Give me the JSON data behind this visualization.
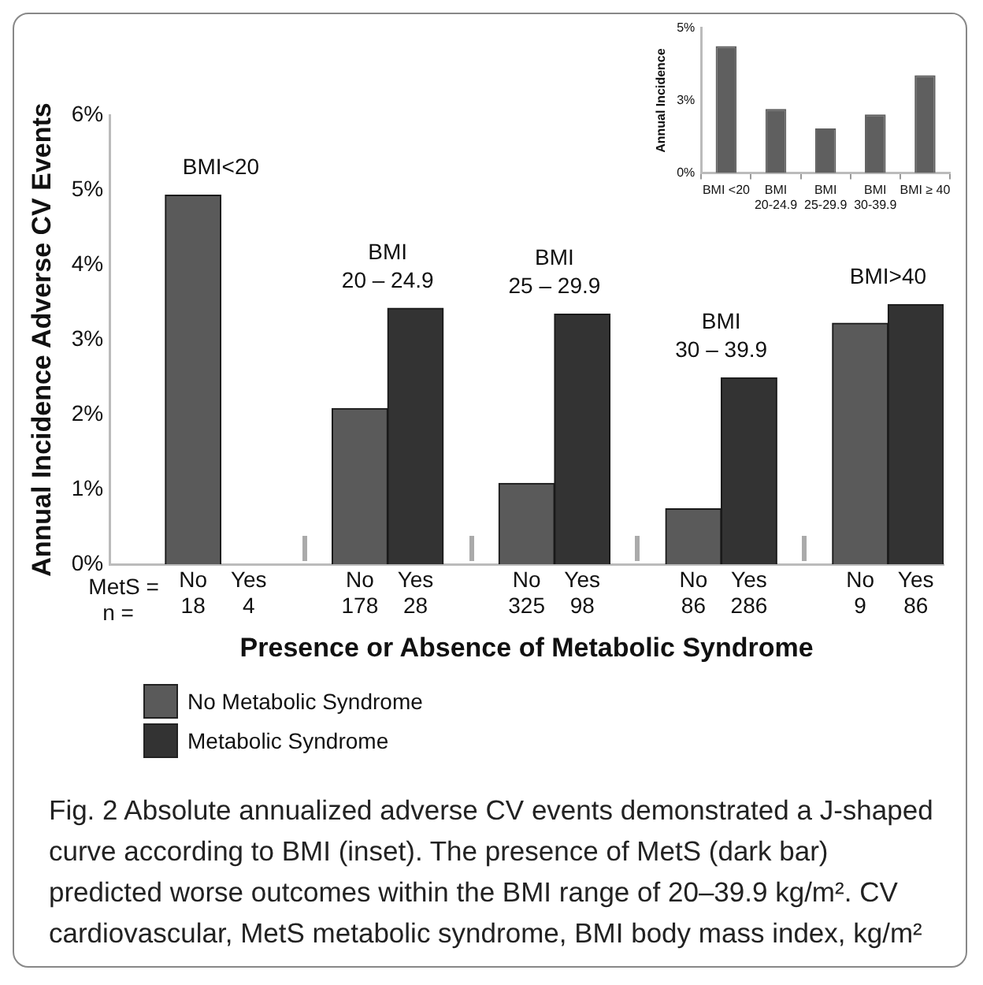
{
  "chart_data": [
    {
      "type": "bar",
      "ylabel": "Annual Incidence Adverse CV Events",
      "xlabel": "Presence or Absence of Metabolic Syndrome",
      "categories": [
        null,
        "No\n18",
        "Yes\n4",
        null,
        "No\n178",
        "Yes\n28",
        null,
        "No\n325",
        "Yes\n98",
        null,
        "No\n86",
        "Yes\n286",
        null,
        "No\n9",
        "Yes\n86"
      ],
      "series": [
        {
          "name": "No Metabolic Syndrome",
          "color": "#5a5a5a",
          "values": [
            null,
            4.93,
            null,
            null,
            2.08,
            null,
            null,
            1.08,
            null,
            null,
            0.74,
            null,
            null,
            3.22,
            null
          ]
        },
        {
          "name": "Metabolic Syndrome",
          "color": "#333333",
          "values": [
            null,
            null,
            0,
            null,
            null,
            3.42,
            null,
            null,
            3.34,
            null,
            null,
            2.49,
            null,
            null,
            3.47
          ]
        }
      ],
      "ylim": [
        0,
        6
      ],
      "yticks": [
        {
          "value": 0,
          "label": "0%"
        },
        {
          "value": 1,
          "label": "1%"
        },
        {
          "value": 2,
          "label": "2%"
        },
        {
          "value": 3,
          "label": "3%"
        },
        {
          "value": 4,
          "label": "4%"
        },
        {
          "value": 5,
          "label": "5%"
        },
        {
          "value": 6,
          "label": "6%"
        }
      ],
      "grid": false,
      "legend": "bottom",
      "annotations": [
        "MetS =\nn =",
        "BMI<20",
        "BMI\n20 – 24.9",
        "BMI\n25 – 29.9",
        "BMI\n30 – 39.9",
        "BMI>40",
        "Fig. 2  Absolute annualized adverse CV events demonstrated a J-shaped curve according to BMI (inset). The presence of MetS (dark bar) predicted worse outcomes within the BMI range of 20–39.9 kg/m². CV cardiovascular, MetS metabolic syndrome, BMI body mass index, kg/m²"
      ]
    },
    {
      "type": "bar",
      "ylabel": "Annual Incidence",
      "categories": [
        "BMI <20",
        "BMI\n20-24.9",
        "BMI\n25-29.9",
        "BMI\n30-39.9",
        "BMI ≥ 40"
      ],
      "values": [
        4.38,
        2.21,
        1.54,
        2.02,
        3.37
      ],
      "color": "#5f5f5f",
      "ylim": [
        0,
        5
      ],
      "yticks": [
        {
          "value": 0,
          "label": "0%"
        },
        {
          "value": 2.5,
          "label": "3%"
        },
        {
          "value": 5,
          "label": "5%"
        }
      ],
      "grid": false
    }
  ]
}
